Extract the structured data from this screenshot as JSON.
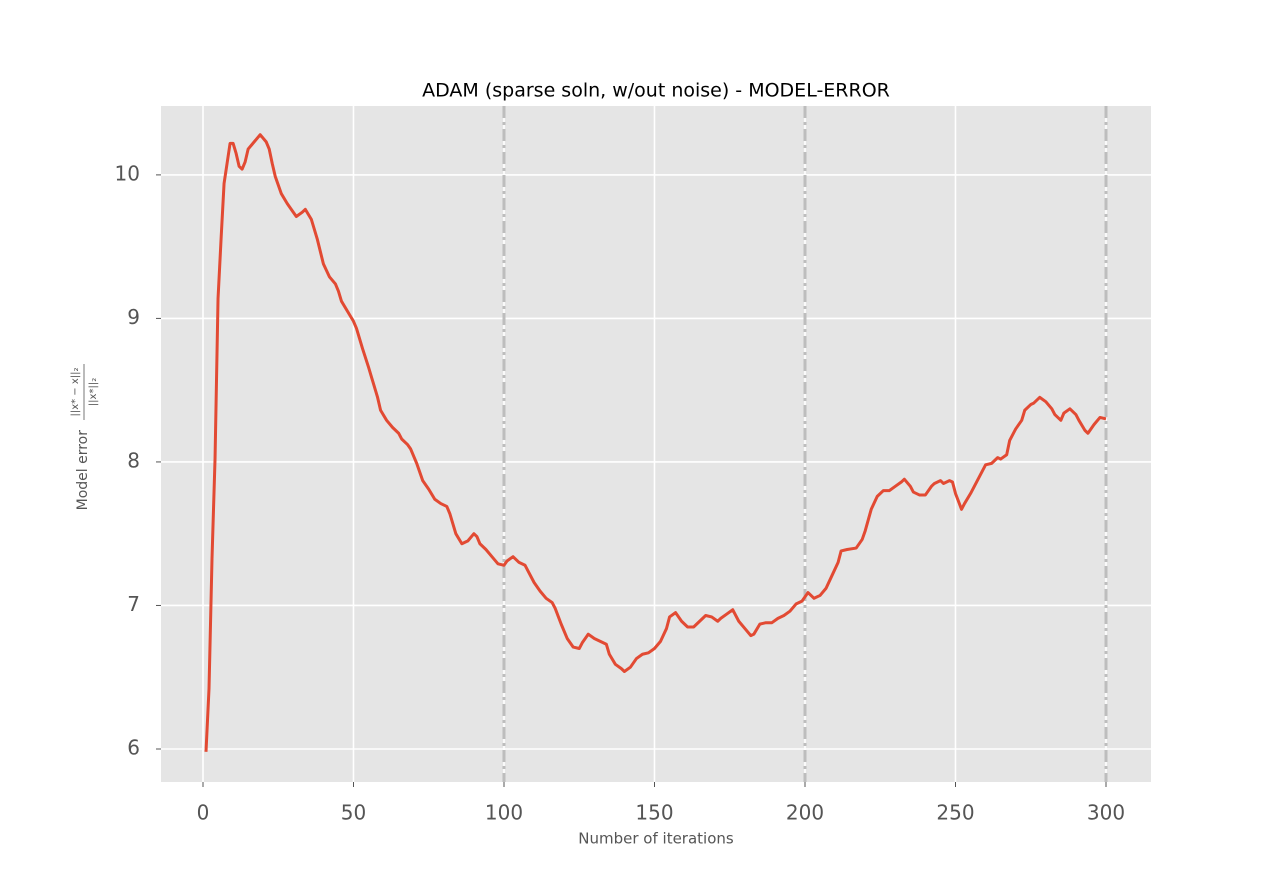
{
  "chart_data": {
    "type": "line",
    "title": "ADAM (sparse soln, w/out noise) - MODEL-ERROR",
    "xlabel": "Number of iterations",
    "ylabel": "Model error",
    "ylabel_fraction": {
      "numerator": "||x* − x||₂",
      "denominator": "||x*||₂"
    },
    "x": [
      1,
      2,
      3,
      4,
      5,
      6,
      7,
      8,
      9,
      10,
      11,
      12,
      13,
      14,
      15,
      17,
      19,
      21,
      22,
      23,
      24,
      26,
      28,
      30,
      31,
      33,
      34,
      36,
      38,
      40,
      42,
      44,
      45,
      46,
      48,
      50,
      51,
      53,
      55,
      56,
      58,
      59,
      61,
      63,
      65,
      66,
      68,
      69,
      71,
      73,
      75,
      77,
      79,
      81,
      82,
      84,
      86,
      88,
      90,
      91,
      92,
      94,
      96,
      98,
      100,
      101,
      103,
      105,
      107,
      108,
      110,
      112,
      114,
      116,
      117,
      119,
      121,
      123,
      125,
      126,
      128,
      130,
      132,
      134,
      135,
      137,
      139,
      140,
      142,
      144,
      146,
      148,
      150,
      152,
      154,
      155,
      157,
      159,
      161,
      163,
      165,
      167,
      169,
      171,
      172,
      174,
      176,
      178,
      180,
      182,
      183,
      185,
      187,
      189,
      191,
      193,
      195,
      197,
      199,
      201,
      203,
      205,
      207,
      209,
      211,
      212,
      214,
      217,
      219,
      220,
      222,
      224,
      226,
      228,
      230,
      232,
      233,
      235,
      236,
      238,
      240,
      242,
      243,
      245,
      246,
      248,
      249,
      250,
      252,
      253,
      255,
      257,
      259,
      260,
      262,
      264,
      265,
      267,
      268,
      270,
      272,
      273,
      275,
      276,
      278,
      280,
      282,
      283,
      285,
      286,
      288,
      290,
      291,
      293,
      294,
      296,
      298,
      300
    ],
    "series": [
      {
        "name": "model error",
        "color": "#e24a33",
        "values": [
          5.98,
          6.42,
          7.33,
          8.02,
          9.14,
          9.55,
          9.94,
          10.08,
          10.22,
          10.22,
          10.15,
          10.06,
          10.04,
          10.09,
          10.18,
          10.23,
          10.28,
          10.23,
          10.18,
          10.08,
          9.99,
          9.87,
          9.8,
          9.74,
          9.71,
          9.74,
          9.76,
          9.69,
          9.55,
          9.38,
          9.29,
          9.24,
          9.19,
          9.12,
          9.05,
          8.98,
          8.93,
          8.79,
          8.66,
          8.59,
          8.45,
          8.36,
          8.29,
          8.24,
          8.2,
          8.16,
          8.12,
          8.09,
          7.99,
          7.87,
          7.81,
          7.74,
          7.71,
          7.69,
          7.64,
          7.5,
          7.43,
          7.45,
          7.5,
          7.48,
          7.43,
          7.39,
          7.34,
          7.29,
          7.28,
          7.31,
          7.34,
          7.3,
          7.28,
          7.24,
          7.16,
          7.1,
          7.05,
          7.02,
          6.98,
          6.87,
          6.77,
          6.71,
          6.7,
          6.74,
          6.8,
          6.77,
          6.75,
          6.73,
          6.66,
          6.59,
          6.56,
          6.54,
          6.57,
          6.63,
          6.66,
          6.67,
          6.7,
          6.75,
          6.84,
          6.92,
          6.95,
          6.89,
          6.85,
          6.85,
          6.89,
          6.93,
          6.92,
          6.89,
          6.91,
          6.94,
          6.97,
          6.89,
          6.84,
          6.79,
          6.8,
          6.87,
          6.88,
          6.88,
          6.91,
          6.93,
          6.96,
          7.01,
          7.03,
          7.09,
          7.05,
          7.07,
          7.12,
          7.21,
          7.3,
          7.38,
          7.39,
          7.4,
          7.46,
          7.52,
          7.67,
          7.76,
          7.8,
          7.8,
          7.83,
          7.86,
          7.88,
          7.83,
          7.79,
          7.77,
          7.77,
          7.83,
          7.85,
          7.87,
          7.85,
          7.87,
          7.86,
          7.78,
          7.67,
          7.71,
          7.78,
          7.86,
          7.94,
          7.98,
          7.99,
          8.03,
          8.02,
          8.05,
          8.15,
          8.23,
          8.29,
          8.36,
          8.4,
          8.41,
          8.45,
          8.42,
          8.37,
          8.33,
          8.29,
          8.34,
          8.37,
          8.33,
          8.29,
          8.22,
          8.2,
          8.26,
          8.31,
          8.3
        ]
      }
    ],
    "vlines": [
      100,
      200,
      300
    ],
    "vline_color": "#bdbdbd",
    "xlim": [
      -13.95,
      314.95
    ],
    "ylim": [
      5.77,
      10.48
    ],
    "xticks": [
      0,
      50,
      100,
      150,
      200,
      250,
      300
    ],
    "yticks": [
      6,
      7,
      8,
      9,
      10
    ],
    "grid": true
  }
}
